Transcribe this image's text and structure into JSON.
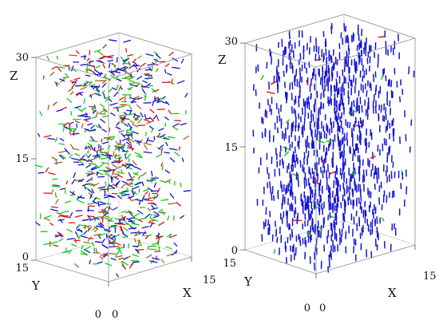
{
  "colors": {
    "blue": "#1414d2",
    "green": "#14c814",
    "red": "#dc1414",
    "brown": "#a06428",
    "frame": "#8c8c8c"
  },
  "left_panel": {
    "z_ticks": [
      "30",
      "15",
      "0"
    ],
    "y_ticks": [
      "15",
      "0"
    ],
    "x_ticks": [
      "0",
      "15"
    ],
    "z_letter": "Z",
    "y_letter": "Y",
    "x_letter": "X",
    "glyph_mix": {
      "blue": 0.38,
      "green": 0.32,
      "red": 0.16,
      "brown": 0.14
    },
    "orientation": "random"
  },
  "right_panel": {
    "z_ticks": [
      "30",
      "15",
      "0"
    ],
    "y_ticks": [
      "15",
      "0"
    ],
    "x_ticks": [
      "0",
      "15"
    ],
    "z_letter": "Z",
    "y_letter": "Y",
    "x_letter": "X",
    "glyph_mix": {
      "blue": 0.97,
      "green": 0.015,
      "red": 0.015
    },
    "orientation": "aligned-vertical"
  }
}
